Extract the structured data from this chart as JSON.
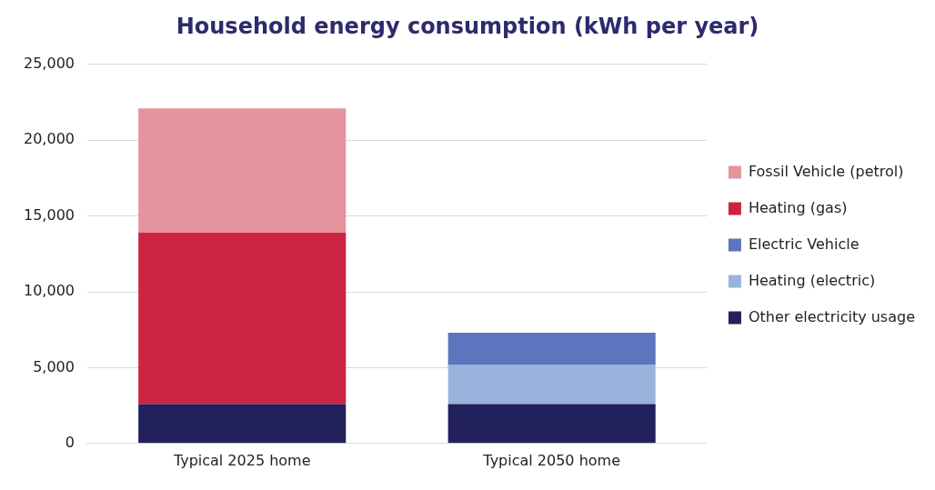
{
  "chart_data": {
    "type": "bar",
    "title": "Household energy consumption (kWh per year)",
    "categories": [
      "Typical 2025 home",
      "Typical 2050 home"
    ],
    "stacked": true,
    "series": [
      {
        "name": "Other electricity usage",
        "color": "#22215e",
        "values": [
          2600,
          2600
        ]
      },
      {
        "name": "Heating (electric)",
        "color": "#9bb3dc",
        "values": [
          null,
          2600
        ]
      },
      {
        "name": "Electric Vehicle",
        "color": "#5b75be",
        "values": [
          null,
          2100
        ]
      },
      {
        "name": "Heating (gas)",
        "color": "#cd2343",
        "values": [
          11300,
          null
        ]
      },
      {
        "name": "Fossil Vehicle (petrol)",
        "color": "#e5939d",
        "values": [
          8200,
          null
        ]
      }
    ],
    "ylim": [
      0,
      25000
    ],
    "yticks": [
      0,
      {
        "value": 5000,
        "label": "5,000"
      },
      {
        "value": 10000,
        "label": "10,000"
      },
      {
        "value": 15000,
        "label": "15,000"
      },
      {
        "value": 20000,
        "label": "20,000"
      },
      {
        "value": 25000,
        "label": "25,000"
      }
    ],
    "grid": "y",
    "legend": "right"
  }
}
